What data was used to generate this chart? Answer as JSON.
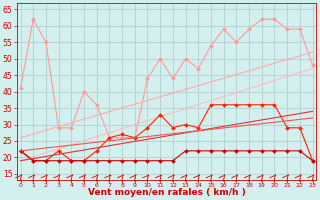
{
  "background_color": "#d4f0ee",
  "grid_color": "#aacccc",
  "xlabel": "Vent moyen/en rafales ( km/h )",
  "ylabel_ticks": [
    15,
    20,
    25,
    30,
    35,
    40,
    45,
    50,
    55,
    60,
    65
  ],
  "xticks": [
    0,
    1,
    2,
    3,
    4,
    5,
    6,
    7,
    8,
    9,
    10,
    11,
    12,
    13,
    14,
    15,
    16,
    17,
    18,
    19,
    20,
    21,
    22,
    23
  ],
  "xlim": [
    -0.3,
    23.3
  ],
  "ylim": [
    13,
    67
  ],
  "series": [
    {
      "name": "pink_jagged_high",
      "color": "#ff9999",
      "linewidth": 0.8,
      "marker": "D",
      "markersize": 2.0,
      "data_x": [
        0,
        1,
        2,
        3,
        4,
        5,
        6,
        7,
        8,
        9,
        10,
        11,
        12,
        13,
        14,
        15,
        16,
        17,
        18,
        19,
        20,
        21,
        22,
        23
      ],
      "data_y": [
        41,
        62,
        55,
        29,
        29,
        40,
        36,
        26,
        26,
        26,
        44,
        50,
        44,
        50,
        47,
        54,
        59,
        55,
        59,
        62,
        62,
        59,
        59,
        48
      ]
    },
    {
      "name": "pink_trend_upper",
      "color": "#ffaaaa",
      "linewidth": 0.8,
      "marker": null,
      "markersize": 0,
      "data_x": [
        0,
        23
      ],
      "data_y": [
        26,
        52
      ]
    },
    {
      "name": "pink_trend_lower",
      "color": "#ffbbbb",
      "linewidth": 0.8,
      "marker": null,
      "markersize": 0,
      "data_x": [
        0,
        23
      ],
      "data_y": [
        19,
        47
      ]
    },
    {
      "name": "red_jagged",
      "color": "#ff2200",
      "linewidth": 0.8,
      "marker": "D",
      "markersize": 2.0,
      "data_x": [
        0,
        1,
        2,
        3,
        4,
        5,
        6,
        7,
        8,
        9,
        10,
        11,
        12,
        13,
        14,
        15,
        16,
        17,
        18,
        19,
        20,
        21,
        22,
        23
      ],
      "data_y": [
        22,
        19,
        19,
        22,
        19,
        19,
        22,
        26,
        27,
        26,
        29,
        33,
        29,
        30,
        29,
        36,
        36,
        36,
        36,
        36,
        36,
        29,
        29,
        19
      ]
    },
    {
      "name": "red_flat_bottom",
      "color": "#cc0000",
      "linewidth": 0.8,
      "marker": "D",
      "markersize": 2.0,
      "data_x": [
        0,
        1,
        2,
        3,
        4,
        5,
        6,
        7,
        8,
        9,
        10,
        11,
        12,
        13,
        14,
        15,
        16,
        17,
        18,
        19,
        20,
        21,
        22,
        23
      ],
      "data_y": [
        22,
        19,
        19,
        19,
        19,
        19,
        19,
        19,
        19,
        19,
        19,
        19,
        19,
        22,
        22,
        22,
        22,
        22,
        22,
        22,
        22,
        22,
        22,
        19
      ]
    },
    {
      "name": "red_trend",
      "color": "#dd3333",
      "linewidth": 0.8,
      "marker": null,
      "markersize": 0,
      "data_x": [
        0,
        23
      ],
      "data_y": [
        19,
        34
      ]
    },
    {
      "name": "red_trend2",
      "color": "#ee5555",
      "linewidth": 0.8,
      "marker": null,
      "markersize": 0,
      "data_x": [
        0,
        23
      ],
      "data_y": [
        22,
        32
      ]
    }
  ],
  "label_color": "#cc0000",
  "label_fontsize": 6.5,
  "tick_fontsize": 5.5,
  "tick_color": "#cc0000"
}
